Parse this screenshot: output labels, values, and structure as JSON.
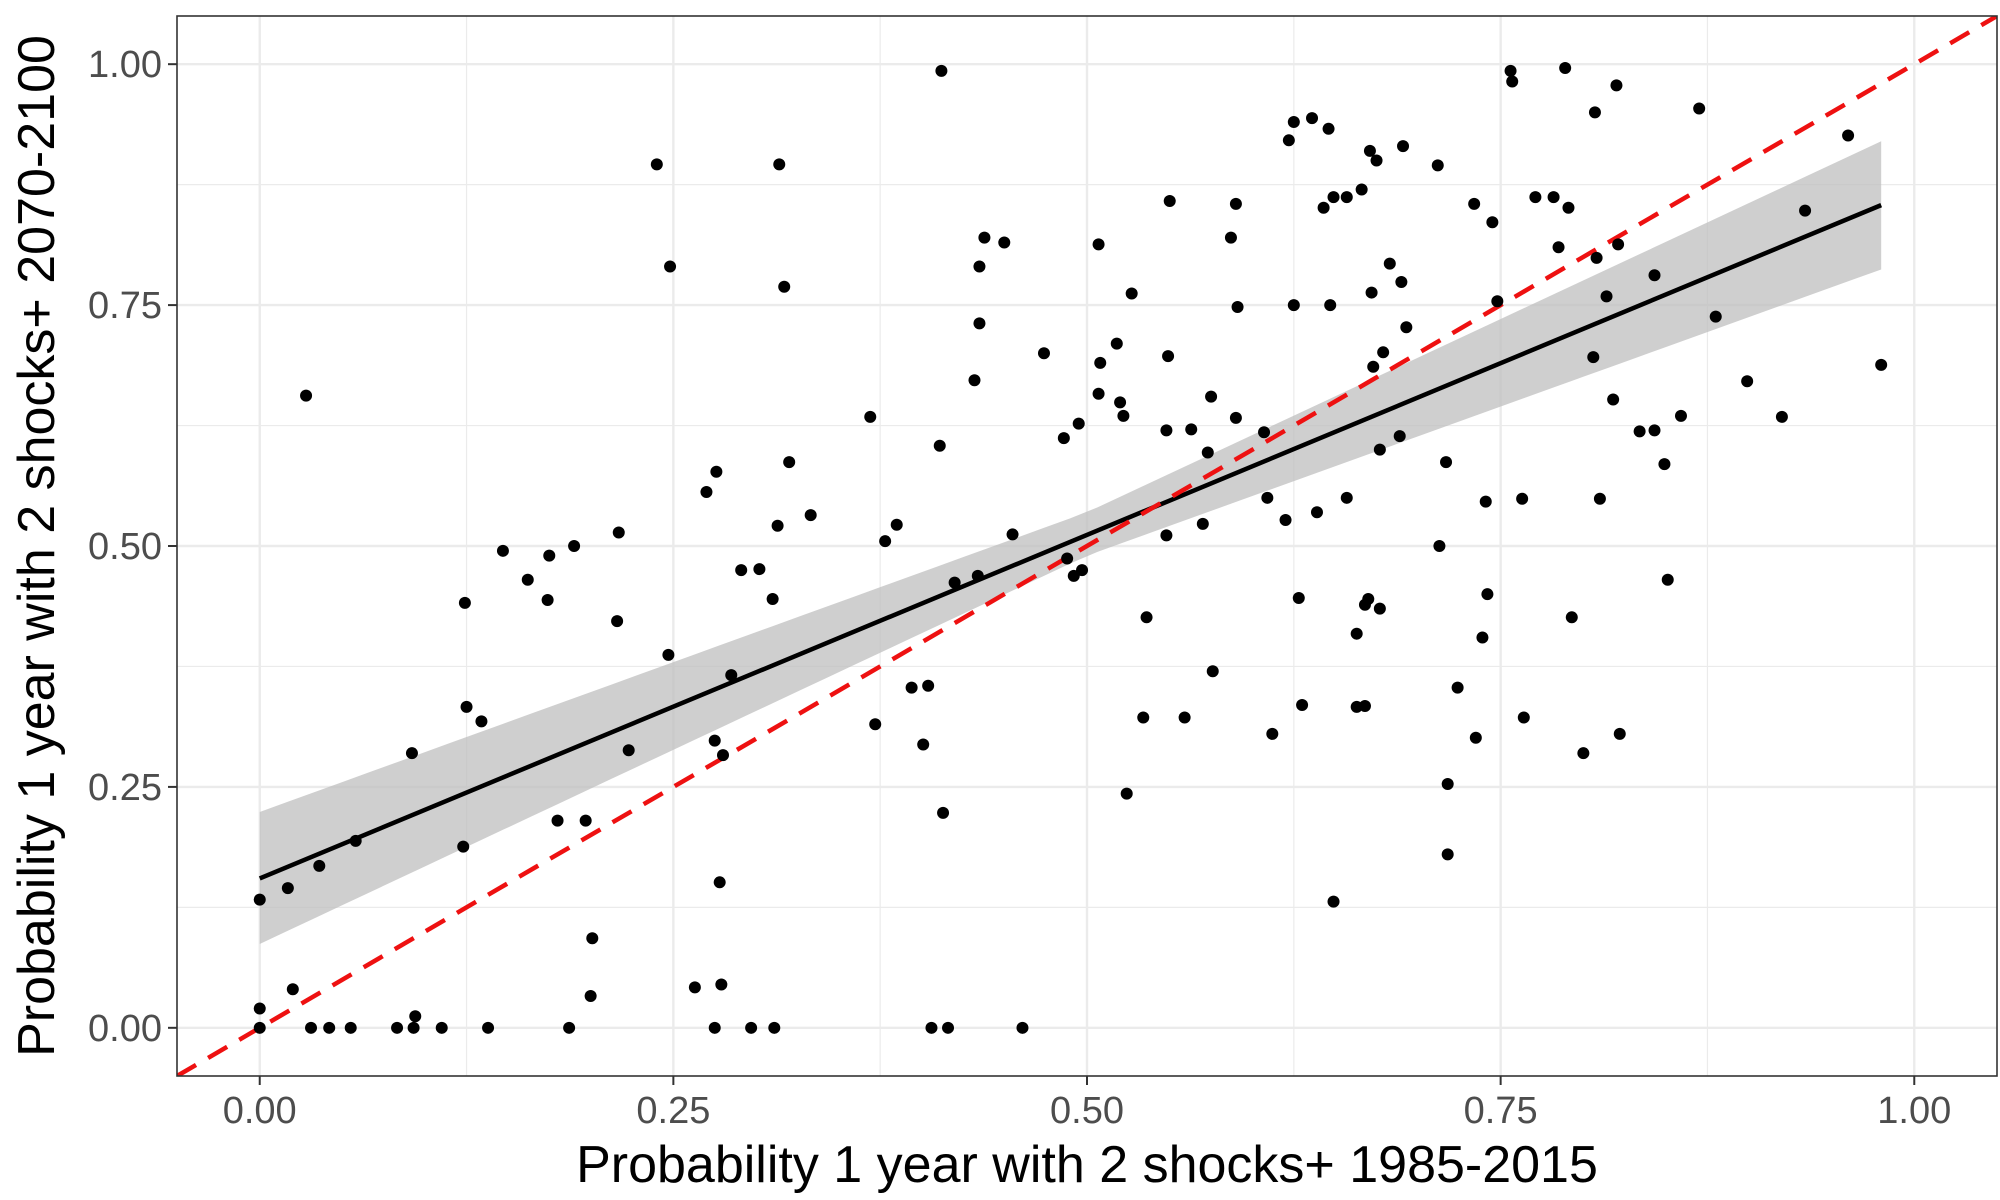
{
  "chart_data": {
    "type": "scatter",
    "title": "",
    "xlabel": "Probability 1 year with 2 shocks+ 1985-2015",
    "ylabel": "Probability 1 year with 2 shocks+ 2070-2100",
    "xlim": [
      -0.05,
      1.05
    ],
    "ylim": [
      -0.05,
      1.05
    ],
    "x_ticks": [
      0.0,
      0.25,
      0.5,
      0.75,
      1.0
    ],
    "y_ticks": [
      0.0,
      0.25,
      0.5,
      0.75,
      1.0
    ],
    "x_tick_labels": [
      "0.00",
      "0.25",
      "0.50",
      "0.75",
      "1.00"
    ],
    "y_tick_labels": [
      "0.00",
      "0.25",
      "0.50",
      "0.75",
      "1.00"
    ],
    "grid": true,
    "colors": {
      "points": "#000000",
      "fit_line": "#000000",
      "confidence_band": "#bfbfbf",
      "identity_line": "#ee1111",
      "grid": "#ebebeb"
    },
    "fit": {
      "x_range": [
        0.0,
        0.98
      ],
      "intercept": 0.155,
      "slope": 0.713,
      "ci_lower_at": [
        [
          0.0,
          0.087
        ],
        [
          0.5,
          0.49
        ],
        [
          0.98,
          0.787
        ]
      ],
      "ci_upper_at": [
        [
          0.0,
          0.224
        ],
        [
          0.5,
          0.535
        ],
        [
          0.98,
          0.92
        ]
      ]
    },
    "reference_line": {
      "type": "dashed",
      "slope": 1,
      "intercept": 0
    },
    "points": [
      [
        0.0,
        0.0
      ],
      [
        0.0,
        0.02
      ],
      [
        0.0,
        0.133
      ],
      [
        0.017,
        0.145
      ],
      [
        0.02,
        0.04
      ],
      [
        0.028,
        0.656
      ],
      [
        0.031,
        0.0
      ],
      [
        0.036,
        0.168
      ],
      [
        0.042,
        0.0
      ],
      [
        0.055,
        0.0
      ],
      [
        0.058,
        0.194
      ],
      [
        0.083,
        0.0
      ],
      [
        0.093,
        0.0
      ],
      [
        0.094,
        0.012
      ],
      [
        0.092,
        0.285
      ],
      [
        0.11,
        0.0
      ],
      [
        0.123,
        0.188
      ],
      [
        0.124,
        0.441
      ],
      [
        0.125,
        0.333
      ],
      [
        0.134,
        0.318
      ],
      [
        0.138,
        0.0
      ],
      [
        0.147,
        0.495
      ],
      [
        0.162,
        0.465
      ],
      [
        0.174,
        0.444
      ],
      [
        0.175,
        0.49
      ],
      [
        0.18,
        0.215
      ],
      [
        0.187,
        0.0
      ],
      [
        0.19,
        0.5
      ],
      [
        0.197,
        0.215
      ],
      [
        0.2,
        0.033
      ],
      [
        0.201,
        0.093
      ],
      [
        0.216,
        0.422
      ],
      [
        0.217,
        0.514
      ],
      [
        0.223,
        0.288
      ],
      [
        0.24,
        0.896
      ],
      [
        0.247,
        0.387
      ],
      [
        0.248,
        0.79
      ],
      [
        0.263,
        0.042
      ],
      [
        0.27,
        0.556
      ],
      [
        0.275,
        0.0
      ],
      [
        0.275,
        0.298
      ],
      [
        0.276,
        0.577
      ],
      [
        0.278,
        0.151
      ],
      [
        0.279,
        0.045
      ],
      [
        0.28,
        0.283
      ],
      [
        0.285,
        0.366
      ],
      [
        0.291,
        0.475
      ],
      [
        0.297,
        0.0
      ],
      [
        0.302,
        0.476
      ],
      [
        0.31,
        0.445
      ],
      [
        0.311,
        0.0
      ],
      [
        0.313,
        0.521
      ],
      [
        0.314,
        0.896
      ],
      [
        0.317,
        0.769
      ],
      [
        0.32,
        0.587
      ],
      [
        0.333,
        0.532
      ],
      [
        0.369,
        0.634
      ],
      [
        0.372,
        0.315
      ],
      [
        0.378,
        0.505
      ],
      [
        0.385,
        0.522
      ],
      [
        0.394,
        0.353
      ],
      [
        0.401,
        0.294
      ],
      [
        0.404,
        0.355
      ],
      [
        0.406,
        0.0
      ],
      [
        0.411,
        0.604
      ],
      [
        0.412,
        0.993
      ],
      [
        0.413,
        0.223
      ],
      [
        0.416,
        0.0
      ],
      [
        0.42,
        0.462
      ],
      [
        0.432,
        0.672
      ],
      [
        0.434,
        0.469
      ],
      [
        0.435,
        0.79
      ],
      [
        0.435,
        0.731
      ],
      [
        0.438,
        0.82
      ],
      [
        0.45,
        0.815
      ],
      [
        0.455,
        0.512
      ],
      [
        0.461,
        0.0
      ],
      [
        0.474,
        0.7
      ],
      [
        0.486,
        0.612
      ],
      [
        0.488,
        0.487
      ],
      [
        0.492,
        0.469
      ],
      [
        0.495,
        0.627
      ],
      [
        0.497,
        0.475
      ],
      [
        0.507,
        0.658
      ],
      [
        0.507,
        0.813
      ],
      [
        0.508,
        0.69
      ],
      [
        0.518,
        0.71
      ],
      [
        0.52,
        0.649
      ],
      [
        0.522,
        0.635
      ],
      [
        0.524,
        0.243
      ],
      [
        0.527,
        0.762
      ],
      [
        0.534,
        0.322
      ],
      [
        0.536,
        0.426
      ],
      [
        0.548,
        0.511
      ],
      [
        0.548,
        0.62
      ],
      [
        0.549,
        0.697
      ],
      [
        0.55,
        0.858
      ],
      [
        0.559,
        0.322
      ],
      [
        0.563,
        0.621
      ],
      [
        0.57,
        0.523
      ],
      [
        0.573,
        0.597
      ],
      [
        0.575,
        0.655
      ],
      [
        0.576,
        0.37
      ],
      [
        0.587,
        0.82
      ],
      [
        0.59,
        0.855
      ],
      [
        0.59,
        0.633
      ],
      [
        0.591,
        0.748
      ],
      [
        0.607,
        0.618
      ],
      [
        0.609,
        0.55
      ],
      [
        0.612,
        0.305
      ],
      [
        0.62,
        0.527
      ],
      [
        0.622,
        0.921
      ],
      [
        0.625,
        0.75
      ],
      [
        0.625,
        0.94
      ],
      [
        0.628,
        0.446
      ],
      [
        0.63,
        0.335
      ],
      [
        0.636,
        0.944
      ],
      [
        0.639,
        0.535
      ],
      [
        0.643,
        0.851
      ],
      [
        0.646,
        0.933
      ],
      [
        0.647,
        0.75
      ],
      [
        0.649,
        0.862
      ],
      [
        0.649,
        0.131
      ],
      [
        0.657,
        0.862
      ],
      [
        0.657,
        0.55
      ],
      [
        0.663,
        0.409
      ],
      [
        0.663,
        0.333
      ],
      [
        0.666,
        0.87
      ],
      [
        0.668,
        0.334
      ],
      [
        0.668,
        0.439
      ],
      [
        0.67,
        0.445
      ],
      [
        0.671,
        0.91
      ],
      [
        0.672,
        0.763
      ],
      [
        0.673,
        0.686
      ],
      [
        0.675,
        0.9
      ],
      [
        0.677,
        0.435
      ],
      [
        0.677,
        0.6
      ],
      [
        0.679,
        0.701
      ],
      [
        0.683,
        0.793
      ],
      [
        0.689,
        0.614
      ],
      [
        0.69,
        0.774
      ],
      [
        0.691,
        0.915
      ],
      [
        0.693,
        0.727
      ],
      [
        0.712,
        0.895
      ],
      [
        0.713,
        0.5
      ],
      [
        0.717,
        0.587
      ],
      [
        0.718,
        0.253
      ],
      [
        0.718,
        0.18
      ],
      [
        0.724,
        0.353
      ],
      [
        0.734,
        0.855
      ],
      [
        0.735,
        0.301
      ],
      [
        0.739,
        0.405
      ],
      [
        0.741,
        0.546
      ],
      [
        0.742,
        0.45
      ],
      [
        0.745,
        0.836
      ],
      [
        0.748,
        0.754
      ],
      [
        0.756,
        0.993
      ],
      [
        0.757,
        0.982
      ],
      [
        0.763,
        0.549
      ],
      [
        0.764,
        0.322
      ],
      [
        0.771,
        0.862
      ],
      [
        0.782,
        0.862
      ],
      [
        0.785,
        0.81
      ],
      [
        0.789,
        0.996
      ],
      [
        0.791,
        0.851
      ],
      [
        0.793,
        0.426
      ],
      [
        0.8,
        0.285
      ],
      [
        0.806,
        0.696
      ],
      [
        0.807,
        0.95
      ],
      [
        0.808,
        0.799
      ],
      [
        0.81,
        0.549
      ],
      [
        0.814,
        0.759
      ],
      [
        0.818,
        0.652
      ],
      [
        0.82,
        0.978
      ],
      [
        0.821,
        0.813
      ],
      [
        0.822,
        0.305
      ],
      [
        0.834,
        0.619
      ],
      [
        0.843,
        0.781
      ],
      [
        0.843,
        0.62
      ],
      [
        0.849,
        0.585
      ],
      [
        0.851,
        0.465
      ],
      [
        0.859,
        0.635
      ],
      [
        0.87,
        0.954
      ],
      [
        0.88,
        0.738
      ],
      [
        0.899,
        0.671
      ],
      [
        0.92,
        0.634
      ],
      [
        0.934,
        0.848
      ],
      [
        0.96,
        0.926
      ],
      [
        0.98,
        0.688
      ]
    ]
  }
}
